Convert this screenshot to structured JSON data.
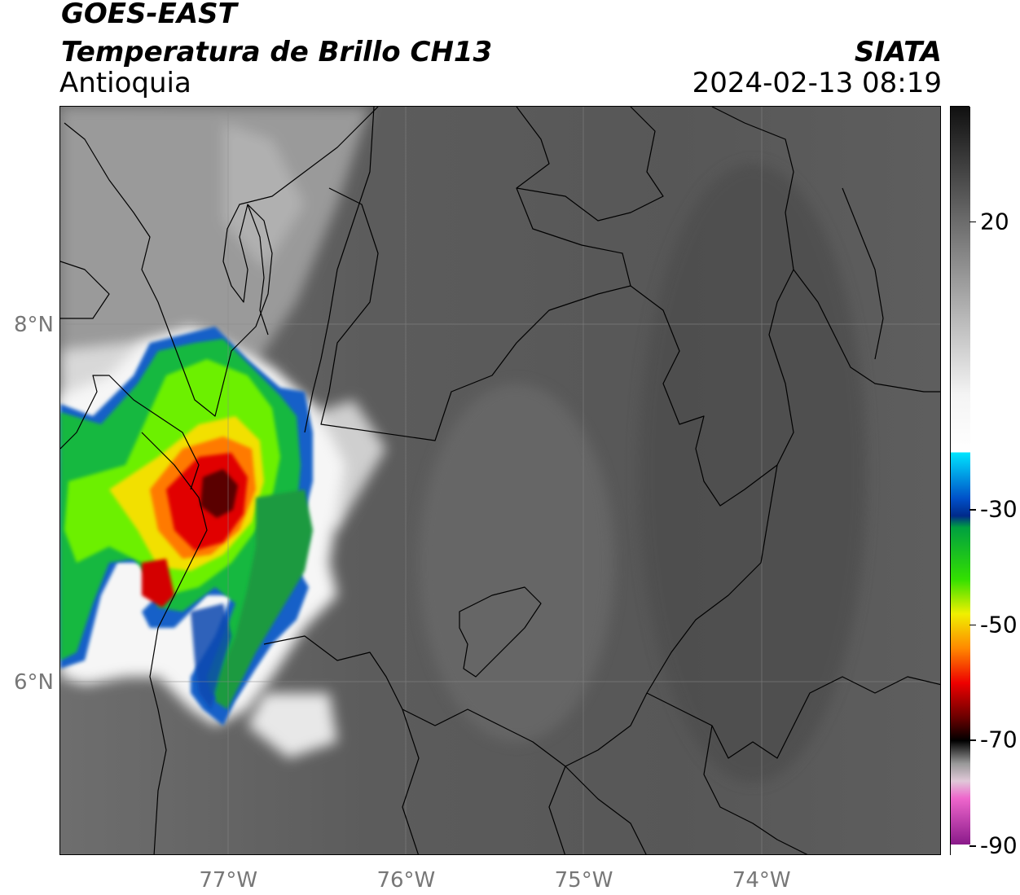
{
  "header": {
    "title_line1": "GOES-EAST",
    "title_line2": "Temperatura de Brillo CH13",
    "organization": "SIATA",
    "region": "Antioquia",
    "timestamp": "2024-02-13 08:19"
  },
  "map": {
    "lat_ticks": [
      {
        "value": 8,
        "label": "8°N"
      },
      {
        "value": 6,
        "label": "6°N"
      }
    ],
    "lon_ticks": [
      {
        "value": -77,
        "label": "77°W"
      },
      {
        "value": -76,
        "label": "76°W"
      },
      {
        "value": -75,
        "label": "75°W"
      },
      {
        "value": -74,
        "label": "74°W"
      }
    ],
    "lon_range": [
      -77.95,
      -72.99
    ],
    "lat_range": [
      5.03,
      9.23
    ],
    "gridlines": true
  },
  "colorbar": {
    "range": [
      -90,
      40
    ],
    "labels": [
      {
        "value": 20,
        "label": "20"
      },
      {
        "value": -30,
        "label": "-30"
      },
      {
        "value": -50,
        "label": "-50"
      },
      {
        "value": -70,
        "label": "-70"
      },
      {
        "value": -90,
        "label": "-90"
      }
    ],
    "stops": [
      {
        "value": 40,
        "color": "#101010"
      },
      {
        "value": 10,
        "color": "#9a9a9a"
      },
      {
        "value": -10,
        "color": "#f4f4f4"
      },
      {
        "value": -20,
        "color": "#ffffff"
      },
      {
        "value": -20.01,
        "color": "#00e5ff"
      },
      {
        "value": -28,
        "color": "#0050c8"
      },
      {
        "value": -31,
        "color": "#002a8a"
      },
      {
        "value": -33,
        "color": "#00a040"
      },
      {
        "value": -42,
        "color": "#33e000"
      },
      {
        "value": -48,
        "color": "#f0f000"
      },
      {
        "value": -54,
        "color": "#ff8800"
      },
      {
        "value": -60,
        "color": "#ee0000"
      },
      {
        "value": -66,
        "color": "#6a0000"
      },
      {
        "value": -70,
        "color": "#000000"
      },
      {
        "value": -74,
        "color": "#999999"
      },
      {
        "value": -77,
        "color": "#e0c8d8"
      },
      {
        "value": -80,
        "color": "#ee66cc"
      },
      {
        "value": -88,
        "color": "#8a1a8a"
      },
      {
        "value": -88.01,
        "color": "#ffffff"
      },
      {
        "value": -90,
        "color": "#ffffff"
      }
    ]
  }
}
